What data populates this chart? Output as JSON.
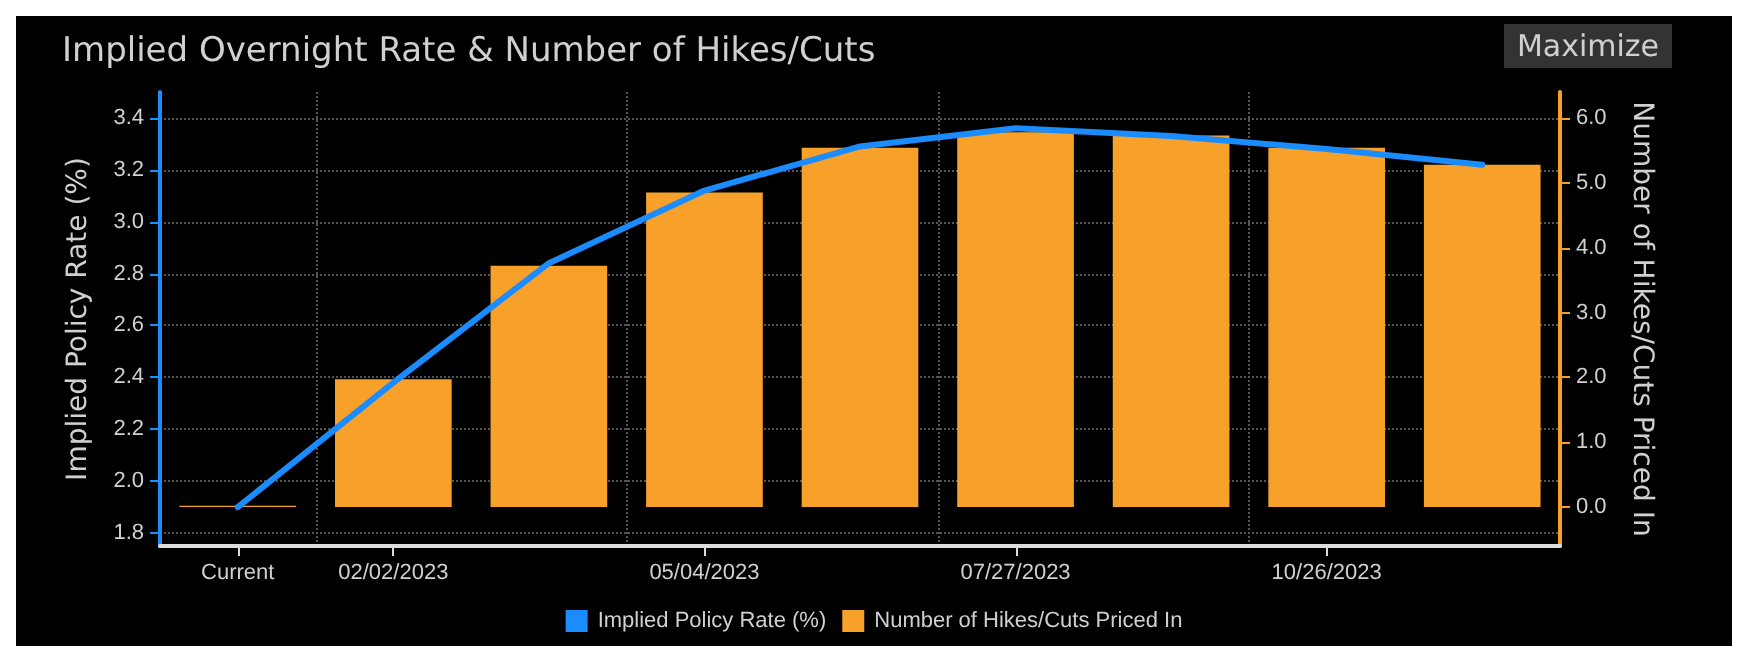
{
  "chart_data": {
    "type": "bar",
    "title": "Implied Overnight Rate & Number of Hikes/Cuts",
    "annotations": [
      "Maximize"
    ],
    "categories": [
      "Current",
      "02/02/2023",
      null,
      "05/04/2023",
      null,
      "07/27/2023",
      null,
      "10/26/2023",
      null
    ],
    "series": [
      {
        "name": "Implied Policy Rate (%)",
        "type": "line",
        "color": "#1a8cff",
        "values": [
          1.9,
          2.38,
          2.84,
          3.12,
          3.29,
          3.36,
          3.33,
          3.28,
          3.22
        ]
      },
      {
        "name": "Number of Hikes/Cuts Priced In",
        "axis": "y2",
        "color": "#f7a12a",
        "values": [
          0.02,
          1.97,
          3.72,
          4.85,
          5.54,
          5.78,
          5.73,
          5.54,
          5.28
        ]
      }
    ],
    "ylabel": "Implied Policy Rate (%)",
    "y2label": "Number of Hikes/Cuts Priced In",
    "ylim": [
      1.75,
      3.5
    ],
    "yticks": [
      1.8,
      2.2,
      2.4,
      2.6,
      2.8,
      {
        "value": 2,
        "label": "2.0"
      },
      {
        "value": 3,
        "label": "3.0"
      },
      3.2,
      3.4
    ],
    "y2lim": [
      -0.6,
      6.4
    ],
    "y2ticks": [
      {
        "value": 0,
        "label": "0.0"
      },
      {
        "value": 1,
        "label": "1.0"
      },
      {
        "value": 2,
        "label": "2.0"
      },
      {
        "value": 3,
        "label": "3.0"
      },
      {
        "value": 4,
        "label": "4.0"
      },
      {
        "value": 5,
        "label": "5.0"
      },
      {
        "value": 6,
        "label": "6.0"
      }
    ],
    "grid": true,
    "legend": "bottom",
    "marker": "none",
    "line_style": "solid"
  }
}
